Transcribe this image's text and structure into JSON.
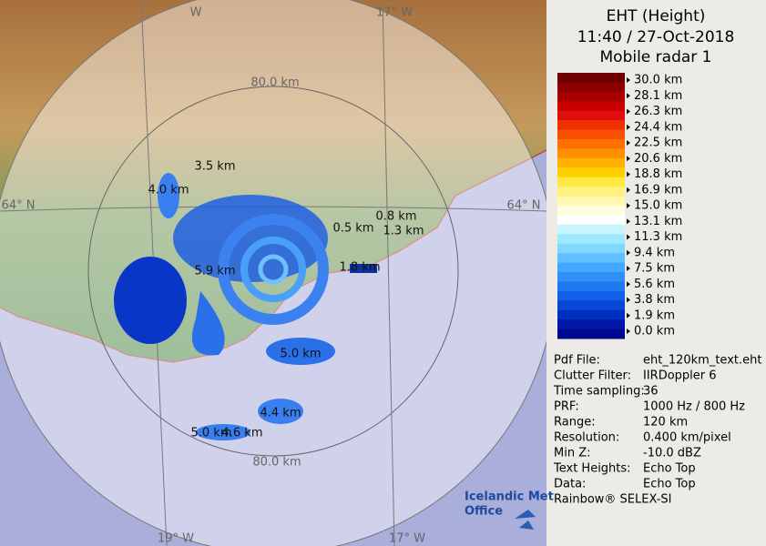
{
  "header": {
    "title": "EHT (Height)",
    "time": "11:40 / 27-Oct-2018",
    "radar": "Mobile radar 1"
  },
  "map": {
    "labels": [
      "W",
      "17° W",
      "80.0 km",
      "64° N",
      "64° N",
      "3.5 km",
      "4.0 km",
      "0.5 km",
      "0.8 km",
      "1.3 km",
      "5.9 km",
      "1.8 km",
      "5.0 km",
      "4.4 km",
      "5.0 km",
      "4.6 km",
      "80.0 km",
      "19° W",
      "17° W"
    ],
    "logo": [
      "Icelandic Met",
      "Office"
    ]
  },
  "colorbar": {
    "labels": [
      "30.0 km",
      "28.1 km",
      "26.3 km",
      "24.4 km",
      "22.5 km",
      "20.6 km",
      "18.8 km",
      "16.9 km",
      "15.0 km",
      "13.1 km",
      "11.3 km",
      "9.4 km",
      "7.5 km",
      "5.6 km",
      "3.8 km",
      "1.9 km",
      "0.0 km"
    ],
    "colors": [
      "#6e0000",
      "#8a0000",
      "#a80000",
      "#c80000",
      "#e01010",
      "#f03000",
      "#f85000",
      "#ff7000",
      "#ff9000",
      "#ffb000",
      "#ffd000",
      "#ffe840",
      "#fff080",
      "#fff8b0",
      "#fffce0",
      "#ffffff",
      "#c8f4ff",
      "#a0e8ff",
      "#80d8ff",
      "#60c0ff",
      "#40a8ff",
      "#3090f8",
      "#2078f0",
      "#1060e8",
      "#0848d8",
      "#0030c0",
      "#0018a8",
      "#000890"
    ]
  },
  "info": {
    "rows": [
      [
        "Pdf File:",
        "eht_120km_text.eht"
      ],
      [
        "Clutter Filter:",
        "IIRDoppler 6"
      ],
      [
        "Time sampling:",
        "36"
      ],
      [
        "PRF:",
        "1000 Hz / 800 Hz"
      ],
      [
        "Range:",
        "120 km"
      ],
      [
        "Resolution:",
        "0.400 km/pixel"
      ],
      [
        "Min Z:",
        "-10.0 dBZ"
      ],
      [
        "Text Heights:",
        "Echo Top"
      ],
      [
        "Data:",
        "Echo Top"
      ]
    ]
  },
  "footer": "Rainbow® SELEX-SI"
}
